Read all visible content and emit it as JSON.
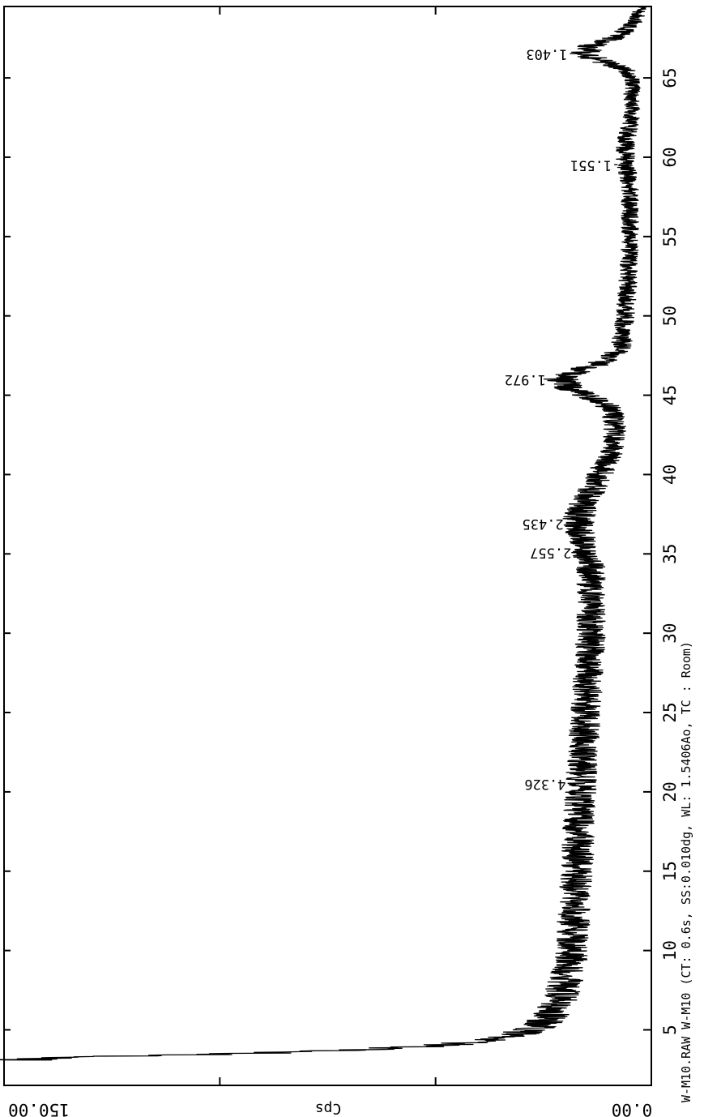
{
  "chart_data": {
    "type": "line",
    "title": "",
    "xlabel": "",
    "ylabel": "Cps",
    "xlim": [
      1.5,
      69.5
    ],
    "ylim": [
      0,
      150
    ],
    "x_ticks": [
      5,
      10,
      15,
      20,
      25,
      30,
      35,
      40,
      45,
      50,
      55,
      60,
      65
    ],
    "y_ticks": [
      "0.00",
      "150.00"
    ],
    "grid": false,
    "orientation": "rotated-90",
    "footer": "W-M10.RAW W-M10 (CT: 0.6s, SS:0.010dg, WL: 1.5406Ao, TC : Room)",
    "peak_labels": [
      {
        "x": 20.5,
        "label": "4.326"
      },
      {
        "x": 35.1,
        "label": "2.557"
      },
      {
        "x": 36.9,
        "label": "2.435"
      },
      {
        "x": 46.0,
        "label": "1.972"
      },
      {
        "x": 59.5,
        "label": "1.551"
      },
      {
        "x": 66.5,
        "label": "1.403"
      }
    ],
    "series": [
      {
        "x": [
          3.1,
          3.3,
          3.5,
          3.7,
          4.0,
          4.3,
          4.6,
          5.0,
          5.5,
          6.0,
          6.5,
          7.0,
          8.0,
          9.0,
          10.0,
          12.0,
          14.0,
          16.0,
          18.0,
          20.0,
          22.0,
          24.0,
          26.0,
          28.0,
          30.0,
          32.0,
          33.0,
          34.0,
          35.0,
          36.0,
          37.0,
          38.0,
          39.0,
          40.0,
          41.0,
          42.0,
          43.0,
          44.0,
          44.5,
          45.0,
          45.5,
          46.0,
          46.5,
          47.0,
          47.5,
          48.0,
          49.0,
          50.0,
          52.0,
          54.0,
          56.0,
          58.0,
          59.0,
          60.0,
          61.0,
          62.0,
          63.0,
          64.0,
          65.0,
          65.5,
          66.0,
          66.5,
          67.0,
          67.5,
          68.0,
          68.5,
          69.0,
          69.5
        ],
        "values": [
          150,
          130,
          95,
          70,
          50,
          38,
          32,
          28,
          25,
          23,
          22,
          21,
          20,
          19,
          18.5,
          18,
          17.5,
          17,
          17,
          16.5,
          16,
          15.5,
          15,
          14.5,
          14,
          14,
          14,
          14,
          15,
          16,
          17,
          16,
          14,
          12,
          10,
          8.5,
          8.5,
          9,
          11,
          15,
          19,
          21,
          18,
          12,
          9,
          7,
          6.5,
          6,
          5.5,
          5,
          5,
          5,
          5.5,
          6,
          6,
          5,
          4.5,
          4.5,
          4.5,
          6,
          11,
          16,
          14,
          9,
          6,
          4,
          3,
          2.5
        ]
      }
    ]
  }
}
